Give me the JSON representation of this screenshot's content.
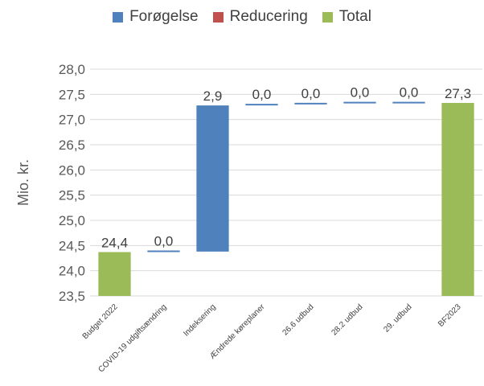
{
  "chart_data": {
    "type": "bar",
    "subtype": "waterfall",
    "ylabel": "Mio. kr.",
    "ylim": [
      23.5,
      28.0
    ],
    "yticks": [
      "23,5",
      "24,0",
      "24,5",
      "25,0",
      "25,5",
      "26,0",
      "26,5",
      "27,0",
      "27,5",
      "28,0"
    ],
    "grid": true,
    "legend_position": "top",
    "legend": [
      {
        "name": "Forøgelse",
        "color": "#4f81bd"
      },
      {
        "name": "Reducering",
        "color": "#c0504d"
      },
      {
        "name": "Total",
        "color": "#9bbb59"
      }
    ],
    "categories": [
      {
        "label": "Budget 2022",
        "kind": "total",
        "start": 23.5,
        "end": 24.37,
        "value_label": "24,4"
      },
      {
        "label": "COVID-19 udgiftsændring",
        "kind": "increase",
        "start": 24.37,
        "end": 24.38,
        "value_label": "0,0"
      },
      {
        "label": "Indeksering",
        "kind": "increase",
        "start": 24.38,
        "end": 27.28,
        "value_label": "2,9"
      },
      {
        "label": "Ændrede køreplaner",
        "kind": "increase",
        "start": 27.28,
        "end": 27.3,
        "value_label": "0,0"
      },
      {
        "label": "26.6 udbud",
        "kind": "increase",
        "start": 27.3,
        "end": 27.32,
        "value_label": "0,0"
      },
      {
        "label": "28.2 udbud",
        "kind": "increase",
        "start": 27.32,
        "end": 27.33,
        "value_label": "0,0"
      },
      {
        "label": "29. udbud",
        "kind": "increase",
        "start": 27.32,
        "end": 27.33,
        "value_label": "0,0"
      },
      {
        "label": "BF2023",
        "kind": "total",
        "start": 23.5,
        "end": 27.33,
        "value_label": "27,3"
      }
    ]
  }
}
